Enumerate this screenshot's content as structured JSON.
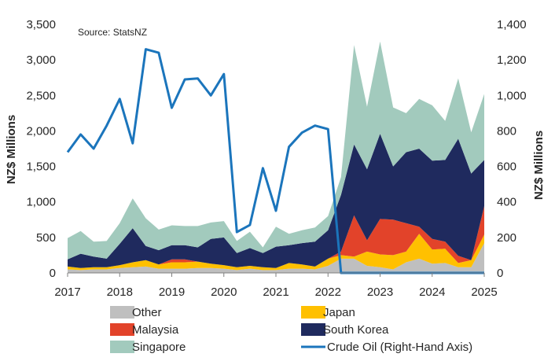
{
  "chart_data": {
    "type": "area",
    "source": "Source: StatsNZ",
    "ylabel_left": "NZ$ Millions",
    "ylabel_right": "NZ$ Millions",
    "ylim_left": [
      0,
      3500
    ],
    "ylim_right": [
      0,
      1400
    ],
    "xlim": [
      2017,
      2025
    ],
    "x_ticks": [
      "2017",
      "2018",
      "2019",
      "2020",
      "2021",
      "2022",
      "2023",
      "2024",
      "2025"
    ],
    "y_ticks_left": [
      "0",
      "500",
      "1,000",
      "1,500",
      "2,000",
      "2,500",
      "3,000",
      "3,500"
    ],
    "y_ticks_right": [
      "0",
      "200",
      "400",
      "600",
      "800",
      "1,000",
      "1,200",
      "1,400"
    ],
    "x": [
      2017.0,
      2017.25,
      2017.5,
      2017.75,
      2018.0,
      2018.25,
      2018.5,
      2018.75,
      2019.0,
      2019.25,
      2019.5,
      2019.75,
      2020.0,
      2020.25,
      2020.5,
      2020.75,
      2021.0,
      2021.25,
      2021.5,
      2021.75,
      2022.0,
      2022.25,
      2022.5,
      2022.75,
      2023.0,
      2023.25,
      2023.5,
      2023.75,
      2024.0,
      2024.25,
      2024.5,
      2024.75,
      2025.0
    ],
    "stacked_series": [
      {
        "name": "Other",
        "color": "#BFBFBF",
        "values": [
          50,
          40,
          50,
          50,
          70,
          80,
          90,
          60,
          60,
          60,
          70,
          70,
          60,
          40,
          60,
          40,
          40,
          60,
          60,
          50,
          100,
          200,
          200,
          100,
          80,
          50,
          150,
          200,
          130,
          140,
          80,
          80,
          420
        ]
      },
      {
        "name": "Japan",
        "color": "#FFC000",
        "values": [
          40,
          30,
          30,
          30,
          40,
          70,
          90,
          60,
          90,
          90,
          90,
          60,
          50,
          40,
          40,
          40,
          30,
          80,
          60,
          40,
          100,
          50,
          30,
          200,
          180,
          200,
          150,
          350,
          200,
          200,
          60,
          100,
          120
        ]
      },
      {
        "name": "Malaysia",
        "color": "#E2432A",
        "values": [
          0,
          0,
          0,
          0,
          0,
          0,
          0,
          0,
          40,
          40,
          0,
          0,
          0,
          0,
          0,
          0,
          0,
          0,
          0,
          0,
          0,
          50,
          580,
          160,
          500,
          500,
          400,
          100,
          150,
          100,
          100,
          0,
          400
        ]
      },
      {
        "name": "South Korea",
        "color": "#1F2A5E",
        "values": [
          100,
          200,
          150,
          120,
          300,
          480,
          200,
          200,
          200,
          200,
          200,
          350,
          390,
          200,
          250,
          200,
          300,
          250,
          300,
          350,
          400,
          800,
          1000,
          1000,
          1200,
          750,
          1000,
          1100,
          1100,
          1150,
          1650,
          1220,
          650
        ]
      },
      {
        "name": "Singapore",
        "color": "#A2CABD",
        "values": [
          300,
          320,
          210,
          250,
          290,
          420,
          390,
          290,
          280,
          270,
          300,
          230,
          230,
          170,
          230,
          80,
          280,
          160,
          180,
          200,
          200,
          250,
          1400,
          880,
          1300,
          830,
          550,
          700,
          780,
          550,
          850,
          580,
          930
        ]
      }
    ],
    "line_series": {
      "name": "Crude Oil (Right-Hand Axis)",
      "color": "#1B75BC",
      "axis": "right",
      "values": [
        680,
        780,
        700,
        830,
        980,
        730,
        1260,
        1240,
        930,
        1090,
        1095,
        1000,
        1120,
        230,
        270,
        590,
        350,
        710,
        790,
        830,
        810,
        0,
        0,
        0,
        0,
        0,
        0,
        0,
        0,
        0,
        0,
        0,
        0
      ]
    },
    "legend": [
      {
        "label": "Other",
        "kind": "swatch",
        "color": "#BFBFBF"
      },
      {
        "label": "Japan",
        "kind": "swatch",
        "color": "#FFC000"
      },
      {
        "label": "Malaysia",
        "kind": "swatch",
        "color": "#E2432A"
      },
      {
        "label": "South Korea",
        "kind": "swatch",
        "color": "#1F2A5E"
      },
      {
        "label": "Singapore",
        "kind": "swatch",
        "color": "#A2CABD"
      },
      {
        "label": "Crude Oil (Right-Hand Axis)",
        "kind": "line",
        "color": "#1B75BC"
      }
    ],
    "legend_placement": "bottom",
    "grid": false
  }
}
